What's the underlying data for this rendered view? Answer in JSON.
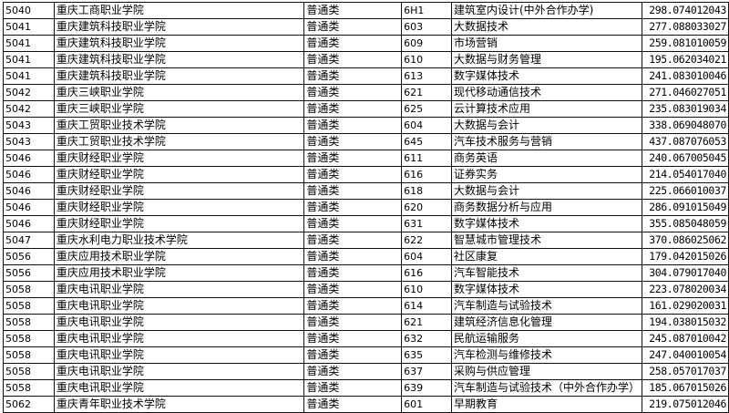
{
  "rows": [
    {
      "code": "5040",
      "school": "重庆工商职业学院",
      "category": "普通类",
      "major_code": "6H1",
      "major": "建筑室内设计(中外合作办学)",
      "score": "298.074012043"
    },
    {
      "code": "5041",
      "school": "重庆建筑科技职业学院",
      "category": "普通类",
      "major_code": "603",
      "major": "大数据技术",
      "score": "277.088033027"
    },
    {
      "code": "5041",
      "school": "重庆建筑科技职业学院",
      "category": "普通类",
      "major_code": "609",
      "major": "市场营销",
      "score": "259.081010059"
    },
    {
      "code": "5041",
      "school": "重庆建筑科技职业学院",
      "category": "普通类",
      "major_code": "610",
      "major": "大数据与财务管理",
      "score": "195.062034021"
    },
    {
      "code": "5041",
      "school": "重庆建筑科技职业学院",
      "category": "普通类",
      "major_code": "613",
      "major": "数字媒体技术",
      "score": "241.083010046"
    },
    {
      "code": "5042",
      "school": "重庆三峡职业学院",
      "category": "普通类",
      "major_code": "621",
      "major": "现代移动通信技术",
      "score": "271.046027051"
    },
    {
      "code": "5042",
      "school": "重庆三峡职业学院",
      "category": "普通类",
      "major_code": "625",
      "major": "云计算技术应用",
      "score": "235.083019034"
    },
    {
      "code": "5043",
      "school": "重庆工贸职业技术学院",
      "category": "普通类",
      "major_code": "604",
      "major": "大数据与会计",
      "score": "338.069048070"
    },
    {
      "code": "5043",
      "school": "重庆工贸职业技术学院",
      "category": "普通类",
      "major_code": "645",
      "major": "汽车技术服务与营销",
      "score": "437.087076053"
    },
    {
      "code": "5046",
      "school": "重庆财经职业学院",
      "category": "普通类",
      "major_code": "611",
      "major": "商务英语",
      "score": "240.067005045"
    },
    {
      "code": "5046",
      "school": "重庆财经职业学院",
      "category": "普通类",
      "major_code": "616",
      "major": "证券实务",
      "score": "214.054017040"
    },
    {
      "code": "5046",
      "school": "重庆财经职业学院",
      "category": "普通类",
      "major_code": "618",
      "major": "大数据与会计",
      "score": "225.066010037"
    },
    {
      "code": "5046",
      "school": "重庆财经职业学院",
      "category": "普通类",
      "major_code": "620",
      "major": "商务数据分析与应用",
      "score": "286.091015049"
    },
    {
      "code": "5046",
      "school": "重庆财经职业学院",
      "category": "普通类",
      "major_code": "631",
      "major": "数字媒体技术",
      "score": "355.085048059"
    },
    {
      "code": "5047",
      "school": "重庆水利电力职业技术学院",
      "category": "普通类",
      "major_code": "622",
      "major": "智慧城市管理技术",
      "score": "370.086025062"
    },
    {
      "code": "5056",
      "school": "重庆应用技术职业学院",
      "category": "普通类",
      "major_code": "604",
      "major": "社区康复",
      "score": "179.042015026"
    },
    {
      "code": "5056",
      "school": "重庆应用技术职业学院",
      "category": "普通类",
      "major_code": "616",
      "major": "汽车智能技术",
      "score": "304.079017040"
    },
    {
      "code": "5058",
      "school": "重庆电讯职业学院",
      "category": "普通类",
      "major_code": "610",
      "major": "数字媒体技术",
      "score": "223.078020034"
    },
    {
      "code": "5058",
      "school": "重庆电讯职业学院",
      "category": "普通类",
      "major_code": "614",
      "major": "汽车制造与试验技术",
      "score": "161.029020031"
    },
    {
      "code": "5058",
      "school": "重庆电讯职业学院",
      "category": "普通类",
      "major_code": "621",
      "major": "建筑经济信息化管理",
      "score": "194.038015032"
    },
    {
      "code": "5058",
      "school": "重庆电讯职业学院",
      "category": "普通类",
      "major_code": "632",
      "major": "民航运输服务",
      "score": "245.087010042"
    },
    {
      "code": "5058",
      "school": "重庆电讯职业学院",
      "category": "普通类",
      "major_code": "635",
      "major": "汽车检测与维修技术",
      "score": "247.040010054"
    },
    {
      "code": "5058",
      "school": "重庆电讯职业学院",
      "category": "普通类",
      "major_code": "637",
      "major": "采购与供应管理",
      "score": "258.057017037"
    },
    {
      "code": "5058",
      "school": "重庆电讯职业学院",
      "category": "普通类",
      "major_code": "639",
      "major": "汽车制造与试验技术（中外合作办学）",
      "score": "185.067015026"
    },
    {
      "code": "5062",
      "school": "重庆青年职业技术学院",
      "category": "普通类",
      "major_code": "601",
      "major": "早期教育",
      "score": "219.075012046"
    }
  ]
}
